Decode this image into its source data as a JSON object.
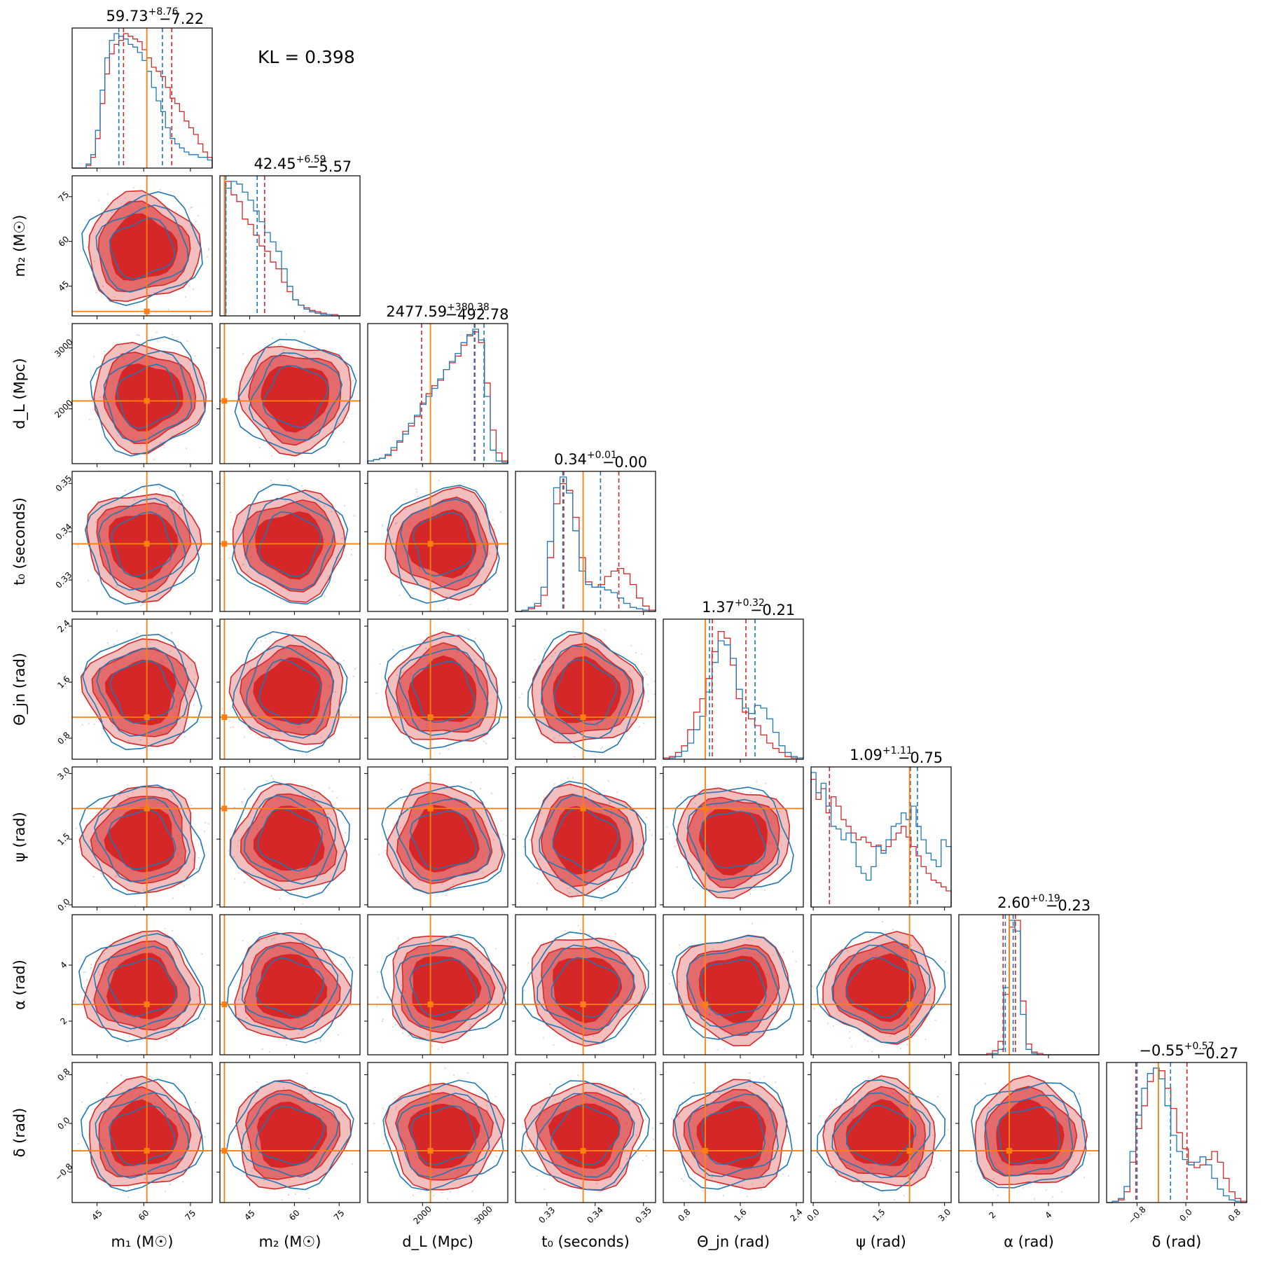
{
  "annotation": "KL = 0.398",
  "colors": {
    "red": "#d62728",
    "blue": "#1f77b4",
    "truth": "#ff7f0e"
  },
  "chart_data": {
    "type": "corner",
    "parameters": [
      {
        "key": "m1",
        "label": "m₁ (M☉)",
        "range": [
          37,
          82
        ],
        "ticks": [
          45,
          60,
          75
        ],
        "truth": 61,
        "title": {
          "main": "59.73",
          "plus": "+8.76",
          "minus": "−7.22"
        },
        "q_red": [
          53.5,
          69
        ],
        "q_blue": [
          52,
          66
        ]
      },
      {
        "key": "m2",
        "label": "m₂ (M☉)",
        "range": [
          35,
          82
        ],
        "ticks": [
          45,
          60,
          75
        ],
        "truth": 36.5,
        "title": {
          "main": "42.45",
          "plus": "+6.59",
          "minus": "−5.57"
        },
        "q_red": [
          37,
          50
        ],
        "q_blue": [
          37,
          47.5
        ]
      },
      {
        "key": "dL",
        "label": "d_L (Mpc)",
        "range": [
          1100,
          3400
        ],
        "ticks": [
          2000,
          3000
        ],
        "truth": 2130,
        "title": {
          "main": "2477.59",
          "plus": "+380.38",
          "minus": "−492.78"
        },
        "q_red": [
          1985,
          2860
        ],
        "q_blue": [
          2850,
          3010
        ]
      },
      {
        "key": "t0",
        "label": "t₀ (seconds)",
        "range": [
          0.3235,
          0.3525
        ],
        "ticks": [
          0.33,
          0.34,
          0.35
        ],
        "tick_labels": [
          "0.33",
          "0.34",
          "0.35"
        ],
        "truth": 0.3375,
        "title": {
          "main": "0.34",
          "plus": "+0.01",
          "minus": "−0.00"
        },
        "q_red": [
          0.3335,
          0.3449
        ],
        "q_blue": [
          0.3333,
          0.3411
        ]
      },
      {
        "key": "theta_jn",
        "label": "Θ_jn (rad)",
        "range": [
          0.5,
          2.5
        ],
        "ticks": [
          0.8,
          1.6,
          2.4
        ],
        "truth": 1.1,
        "title": {
          "main": "1.37",
          "plus": "+0.32",
          "minus": "−0.21"
        },
        "q_red": [
          1.2,
          1.68
        ],
        "q_blue": [
          1.16,
          1.81
        ]
      },
      {
        "key": "psi",
        "label": "ψ (rad)",
        "range": [
          -0.05,
          3.15
        ],
        "ticks": [
          0.0,
          1.5,
          3.0
        ],
        "tick_labels": [
          "0.0",
          "1.5",
          "3.0"
        ],
        "truth": 2.2,
        "title": {
          "main": "1.09",
          "plus": "+1.11",
          "minus": "−0.75"
        },
        "q_red": [
          0.37,
          2.2
        ],
        "q_blue": [
          2.22,
          2.38
        ]
      },
      {
        "key": "alpha",
        "label": "α (rad)",
        "range": [
          0.8,
          5.8
        ],
        "ticks": [
          2,
          4
        ],
        "truth": 2.6,
        "title": {
          "main": "2.60",
          "plus": "+0.19",
          "minus": "−0.23"
        },
        "q_red": [
          2.38,
          2.82
        ],
        "q_blue": [
          2.46,
          2.74
        ]
      },
      {
        "key": "delta",
        "label": "δ (rad)",
        "range": [
          -1.3,
          1.0
        ],
        "ticks": [
          -0.8,
          0.0,
          0.8
        ],
        "tick_labels": [
          "−0.8",
          "0.0",
          "0.8"
        ],
        "truth": -0.45,
        "title": {
          "main": "−0.55",
          "plus": "+0.57",
          "minus": "−0.27"
        },
        "q_red": [
          -0.82,
          0.02
        ],
        "q_blue": [
          -0.8,
          -0.25
        ]
      }
    ],
    "series": [
      {
        "color": "red"
      },
      {
        "color": "blue"
      }
    ],
    "histograms": {
      "m1": {
        "red": [
          0,
          0,
          0,
          2,
          8,
          22,
          48,
          70,
          85,
          92,
          95,
          100,
          98,
          96,
          94,
          88,
          82,
          75,
          72,
          68,
          60,
          52,
          48,
          42,
          35,
          30,
          25,
          18,
          12,
          8
        ],
        "blue": [
          0,
          0,
          0,
          3,
          10,
          28,
          58,
          82,
          95,
          100,
          98,
          96,
          92,
          90,
          86,
          80,
          72,
          60,
          50,
          42,
          30,
          22,
          18,
          15,
          12,
          10,
          10,
          8,
          8,
          6
        ]
      },
      "m2": {
        "red": [
          0,
          100,
          90,
          85,
          72,
          68,
          60,
          52,
          48,
          40,
          35,
          25,
          18,
          12,
          8,
          6,
          4,
          3,
          2,
          1,
          1,
          0,
          0,
          0,
          0
        ],
        "blue": [
          0,
          95,
          100,
          98,
          92,
          86,
          78,
          70,
          62,
          55,
          48,
          35,
          22,
          12,
          8,
          5,
          3,
          2,
          1,
          1,
          0,
          0,
          0,
          0,
          0
        ]
      },
      "dL": {
        "red": [
          2,
          3,
          4,
          6,
          10,
          16,
          24,
          28,
          35,
          45,
          52,
          58,
          62,
          70,
          75,
          80,
          88,
          95,
          98,
          90,
          60,
          25,
          8,
          2
        ],
        "blue": [
          2,
          3,
          4,
          7,
          12,
          17,
          22,
          30,
          36,
          44,
          50,
          56,
          63,
          70,
          76,
          82,
          90,
          96,
          100,
          92,
          50,
          10,
          2,
          1
        ]
      },
      "t0": {
        "red": [
          0,
          1,
          2,
          4,
          12,
          40,
          80,
          95,
          90,
          70,
          40,
          22,
          18,
          20,
          26,
          30,
          32,
          28,
          20,
          10,
          4,
          1
        ],
        "blue": [
          0,
          1,
          3,
          6,
          18,
          52,
          92,
          100,
          88,
          60,
          30,
          20,
          18,
          18,
          16,
          14,
          10,
          6,
          3,
          2,
          1,
          0
        ]
      },
      "theta_jn": {
        "red": [
          1,
          2,
          5,
          10,
          22,
          35,
          45,
          60,
          80,
          95,
          90,
          70,
          45,
          35,
          30,
          25,
          18,
          12,
          8,
          5,
          2,
          1,
          0
        ],
        "blue": [
          0,
          1,
          2,
          6,
          12,
          22,
          32,
          50,
          72,
          88,
          85,
          75,
          52,
          38,
          34,
          40,
          38,
          30,
          20,
          10,
          5,
          2,
          1
        ]
      },
      "psi": {
        "red": [
          95,
          80,
          88,
          70,
          82,
          75,
          65,
          60,
          55,
          50,
          52,
          48,
          45,
          46,
          42,
          45,
          50,
          55,
          60,
          52,
          45,
          38,
          30,
          25,
          20,
          18,
          15,
          12
        ],
        "blue": [
          100,
          85,
          92,
          75,
          60,
          58,
          50,
          55,
          48,
          30,
          25,
          20,
          30,
          45,
          40,
          50,
          60,
          62,
          70,
          65,
          75,
          60,
          50,
          40,
          35,
          30,
          50,
          45
        ]
      },
      "alpha": {
        "red": [
          0,
          0,
          0,
          0,
          0,
          1,
          3,
          10,
          45,
          95,
          100,
          40,
          8,
          2,
          1,
          0,
          0,
          0,
          0,
          0,
          0,
          0,
          0,
          0,
          0
        ],
        "blue": [
          0,
          0,
          0,
          0,
          0,
          0,
          1,
          4,
          50,
          100,
          92,
          30,
          4,
          1,
          0,
          0,
          0,
          0,
          0,
          0,
          0,
          0,
          0,
          0,
          0
        ]
      },
      "delta": {
        "red": [
          0,
          1,
          2,
          8,
          30,
          55,
          72,
          90,
          100,
          98,
          85,
          70,
          52,
          40,
          30,
          26,
          28,
          32,
          38,
          30,
          18,
          8,
          3,
          1
        ],
        "blue": [
          0,
          1,
          3,
          12,
          38,
          65,
          85,
          96,
          100,
          92,
          72,
          50,
          38,
          32,
          28,
          30,
          34,
          28,
          18,
          10,
          5,
          2,
          1,
          0
        ]
      }
    },
    "ylim_m2": [
      35,
      82
    ]
  },
  "layout": {
    "left": 103,
    "top": 40,
    "panel": 200,
    "step": 211
  }
}
